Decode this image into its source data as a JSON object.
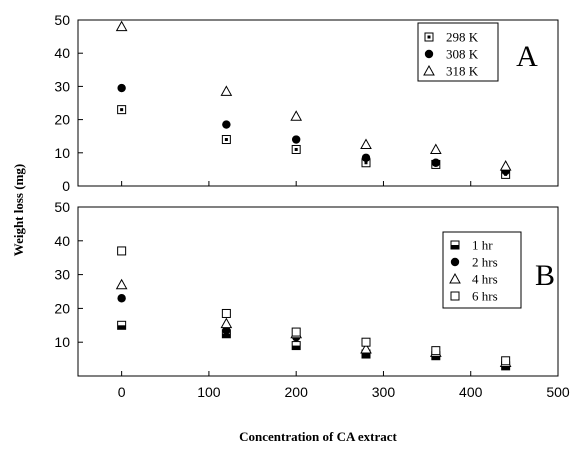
{
  "chart_data": [
    {
      "type": "scatter",
      "panel": "A",
      "ylabel": "Weight loss (mg)",
      "xlabel": "Concentration of CA extract",
      "xlim": [
        -50,
        500
      ],
      "ylim": [
        0,
        50
      ],
      "xticks": [
        0,
        100,
        200,
        300,
        400,
        500
      ],
      "yticks": [
        0,
        10,
        20,
        30,
        40,
        50
      ],
      "legend": "top-right",
      "series": [
        {
          "name": "298 K",
          "marker": "square-dot",
          "x": [
            0,
            120,
            200,
            280,
            360,
            440
          ],
          "y": [
            23,
            14,
            11,
            7,
            6.5,
            3.5
          ]
        },
        {
          "name": "308 K",
          "marker": "circle-filled",
          "x": [
            0,
            120,
            200,
            280,
            360,
            440
          ],
          "y": [
            29.5,
            18.5,
            14,
            8.5,
            7,
            4.5
          ]
        },
        {
          "name": "318 K",
          "marker": "triangle-open",
          "x": [
            0,
            120,
            200,
            280,
            360,
            440
          ],
          "y": [
            48,
            28.5,
            21,
            12.5,
            11,
            6
          ]
        }
      ]
    },
    {
      "type": "scatter",
      "panel": "B",
      "xlabel": "Concentration of CA extract",
      "xlim": [
        -50,
        500
      ],
      "ylim": [
        0,
        50
      ],
      "xticks": [
        0,
        100,
        200,
        300,
        400,
        500
      ],
      "yticks": [
        10,
        20,
        30,
        40,
        50
      ],
      "legend": "right",
      "series": [
        {
          "name": "1 hr",
          "marker": "square-half",
          "x": [
            0,
            120,
            200,
            280,
            360,
            440
          ],
          "y": [
            15,
            12.5,
            9,
            6.5,
            6,
            3
          ]
        },
        {
          "name": "2 hrs",
          "marker": "circle-filled",
          "x": [
            0,
            120,
            200,
            280,
            360,
            440
          ],
          "y": [
            23,
            13.5,
            11.5,
            7,
            6.5,
            3.5
          ]
        },
        {
          "name": "4 hrs",
          "marker": "triangle-open",
          "x": [
            0,
            120,
            200,
            280,
            360,
            440
          ],
          "y": [
            27,
            15.5,
            12.5,
            8,
            7,
            4
          ]
        },
        {
          "name": "6 hrs",
          "marker": "square-open",
          "x": [
            0,
            120,
            200,
            280,
            360,
            440
          ],
          "y": [
            37,
            18.5,
            13,
            10,
            7.5,
            4.5
          ]
        }
      ]
    }
  ]
}
